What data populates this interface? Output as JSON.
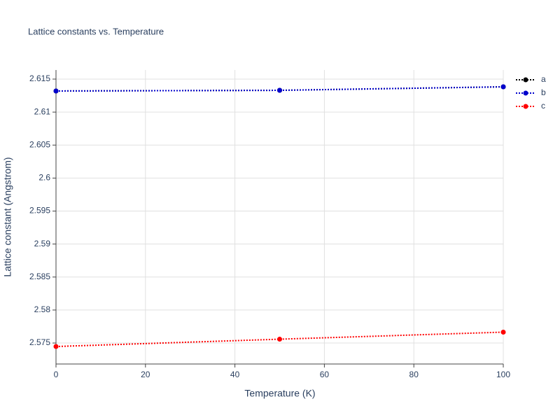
{
  "chart_data": {
    "type": "line",
    "title": "Lattice constants vs. Temperature",
    "x_label": "Temperature (K)",
    "y_label": "Lattice constant (Angstrom)",
    "x": [
      0,
      50,
      100
    ],
    "series": [
      {
        "name": "a",
        "color": "#000000",
        "values": [
          2.6132,
          2.6133,
          2.61383
        ]
      },
      {
        "name": "b",
        "color": "#0000cc",
        "values": [
          2.6132,
          2.6133,
          2.61383
        ]
      },
      {
        "name": "c",
        "color": "#ff0000",
        "values": [
          2.57447,
          2.57558,
          2.57665
        ]
      }
    ],
    "xlim": [
      0,
      100
    ],
    "xticks": [
      0,
      20,
      40,
      60,
      80,
      100
    ],
    "ylim": [
      2.57182,
      2.61638
    ],
    "yticks": [
      2.575,
      2.58,
      2.585,
      2.59,
      2.595,
      2.6,
      2.605,
      2.61,
      2.615
    ],
    "grid": true,
    "legend": "top-right"
  }
}
